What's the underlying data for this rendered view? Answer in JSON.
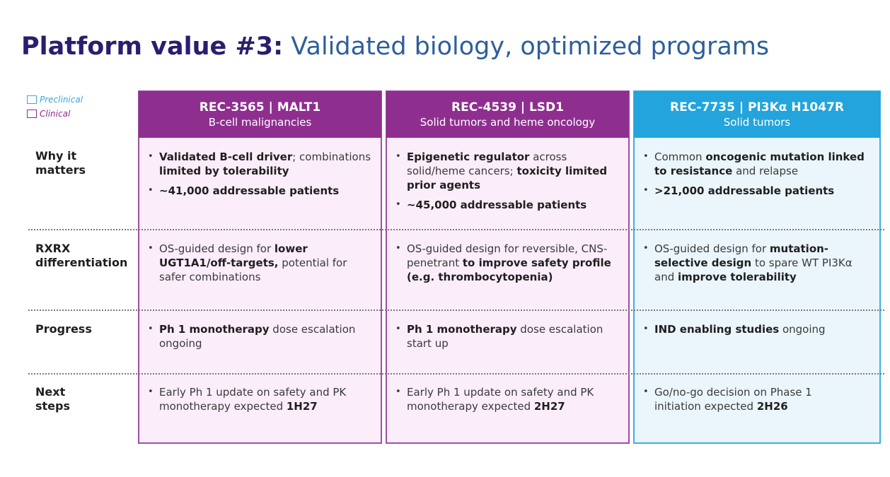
{
  "title": {
    "bold": "Platform value #3:",
    "light": "Validated biology, optimized programs"
  },
  "legend": {
    "preclinical": "Preclinical",
    "clinical": "Clinical"
  },
  "colors": {
    "clinical": "#8e2f8f",
    "preclinical": "#23a4dd",
    "title": "#2b1d6e"
  },
  "rows": {
    "why": [
      "Why it",
      "matters"
    ],
    "diff": [
      "RXRX",
      "differentiation"
    ],
    "progress": [
      "Progress"
    ],
    "next": [
      "Next",
      "steps"
    ]
  },
  "programs": [
    {
      "code": "REC-3565 | MALT1",
      "indication": "B-cell malignancies",
      "stage": "Clinical",
      "why": [
        [
          {
            "t": "Validated B-cell driver",
            "b": true
          },
          {
            "t": "; combinations "
          },
          {
            "t": "limited by tolerability",
            "b": true
          }
        ],
        [
          {
            "t": "~41,000 addressable patients",
            "b": true
          }
        ]
      ],
      "diff": [
        [
          {
            "t": "OS-guided design for "
          },
          {
            "t": "lower UGT1A1/off-targets,",
            "b": true
          },
          {
            "t": " potential for safer combinations"
          }
        ]
      ],
      "progress": [
        [
          {
            "t": "Ph 1 monotherapy",
            "b": true
          },
          {
            "t": " dose escalation ongoing"
          }
        ]
      ],
      "next": [
        [
          {
            "t": "Early Ph 1 update on safety and PK monotherapy expected "
          },
          {
            "t": "1H27",
            "b": true
          }
        ]
      ]
    },
    {
      "code": "REC-4539 | LSD1",
      "indication": "Solid tumors and heme oncology",
      "stage": "Clinical",
      "why": [
        [
          {
            "t": "Epigenetic regulator",
            "b": true
          },
          {
            "t": " across solid/heme cancers; "
          },
          {
            "t": "toxicity limited prior agents",
            "b": true
          }
        ],
        [
          {
            "t": "~45,000 addressable patients",
            "b": true
          }
        ]
      ],
      "diff": [
        [
          {
            "t": "OS-guided design for reversible, CNS-penetrant "
          },
          {
            "t": "to improve safety profile (e.g. thrombocytopenia)",
            "b": true
          }
        ]
      ],
      "progress": [
        [
          {
            "t": "Ph 1 monotherapy",
            "b": true
          },
          {
            "t": " dose escalation start up"
          }
        ]
      ],
      "next": [
        [
          {
            "t": "Early Ph 1 update on safety and PK monotherapy expected "
          },
          {
            "t": "2H27",
            "b": true
          }
        ]
      ]
    },
    {
      "code": "REC-7735 | PI3Kα H1047R",
      "indication": "Solid tumors",
      "stage": "Preclinical",
      "why": [
        [
          {
            "t": "Common "
          },
          {
            "t": "oncogenic mutation linked to resistance",
            "b": true
          },
          {
            "t": " and relapse"
          }
        ],
        [
          {
            "t": ">21,000 addressable patients",
            "b": true
          }
        ]
      ],
      "diff": [
        [
          {
            "t": "OS-guided design for "
          },
          {
            "t": "mutation-selective design",
            "b": true
          },
          {
            "t": " to spare WT PI3Kα and "
          },
          {
            "t": "improve tolerability",
            "b": true
          }
        ]
      ],
      "progress": [
        [
          {
            "t": "IND enabling studies",
            "b": true
          },
          {
            "t": " ongoing"
          }
        ]
      ],
      "next": [
        [
          {
            "t": "Go/no-go decision on Phase 1 initiation expected "
          },
          {
            "t": "2H26",
            "b": true
          }
        ]
      ]
    }
  ]
}
